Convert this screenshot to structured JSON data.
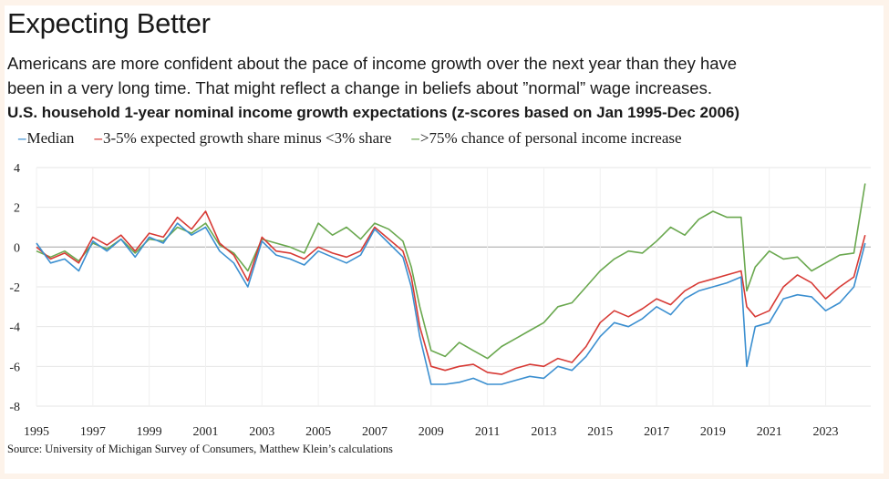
{
  "title": "Expecting Better",
  "subtitle_line1": "Americans are more confident about the pace of income growth over the next year than they have",
  "subtitle_line2": "been in a very long time. That might reflect a change in beliefs about ”normal” wage increases.",
  "source": "Source: University of Michigan Survey of Consumers, Matthew Klein’s calculations",
  "chart_data": {
    "type": "line",
    "title": "U.S. household 1-year nominal income growth expectations (z-scores based on Jan 1995-Dec 2006)",
    "xlabel": "",
    "ylabel": "",
    "xlim": [
      1995,
      2024.6
    ],
    "ylim": [
      -8,
      4
    ],
    "yticks": [
      4,
      2,
      0,
      -2,
      -4,
      -6,
      -8
    ],
    "xticks": [
      1995,
      1997,
      1999,
      2001,
      2003,
      2005,
      2007,
      2009,
      2011,
      2013,
      2015,
      2017,
      2019,
      2021,
      2023
    ],
    "grid": true,
    "legend_position": "top",
    "series": [
      {
        "name": "Median",
        "color": "#3b8fd0",
        "x": [
          1995.0,
          1995.5,
          1996.0,
          1996.5,
          1997.0,
          1997.5,
          1998.0,
          1998.5,
          1999.0,
          1999.5,
          2000.0,
          2000.5,
          2001.0,
          2001.5,
          2002.0,
          2002.5,
          2003.0,
          2003.5,
          2004.0,
          2004.5,
          2005.0,
          2005.5,
          2006.0,
          2006.5,
          2007.0,
          2007.5,
          2008.0,
          2008.3,
          2008.6,
          2009.0,
          2009.5,
          2010.0,
          2010.5,
          2011.0,
          2011.5,
          2012.0,
          2012.5,
          2013.0,
          2013.5,
          2014.0,
          2014.5,
          2015.0,
          2015.5,
          2016.0,
          2016.5,
          2017.0,
          2017.5,
          2018.0,
          2018.5,
          2019.0,
          2019.5,
          2020.0,
          2020.2,
          2020.5,
          2021.0,
          2021.5,
          2022.0,
          2022.5,
          2023.0,
          2023.5,
          2024.0,
          2024.4
        ],
        "y": [
          0.2,
          -0.8,
          -0.6,
          -1.2,
          0.3,
          -0.2,
          0.4,
          -0.5,
          0.5,
          0.2,
          1.2,
          0.6,
          1.0,
          -0.2,
          -0.8,
          -2.0,
          0.3,
          -0.4,
          -0.6,
          -0.9,
          -0.2,
          -0.5,
          -0.8,
          -0.4,
          0.9,
          0.2,
          -0.5,
          -2.0,
          -4.5,
          -6.9,
          -6.9,
          -6.8,
          -6.6,
          -6.9,
          -6.9,
          -6.7,
          -6.5,
          -6.6,
          -6.0,
          -6.2,
          -5.5,
          -4.5,
          -3.8,
          -4.0,
          -3.6,
          -3.0,
          -3.4,
          -2.6,
          -2.2,
          -2.0,
          -1.8,
          -1.5,
          -6.0,
          -4.0,
          -3.8,
          -2.6,
          -2.4,
          -2.5,
          -3.2,
          -2.8,
          -2.0,
          0.2
        ]
      },
      {
        "name": "3-5% expected growth share minus <3% share",
        "color": "#d73a35",
        "x": [
          1995.0,
          1995.5,
          1996.0,
          1996.5,
          1997.0,
          1997.5,
          1998.0,
          1998.5,
          1999.0,
          1999.5,
          2000.0,
          2000.5,
          2001.0,
          2001.5,
          2002.0,
          2002.5,
          2003.0,
          2003.5,
          2004.0,
          2004.5,
          2005.0,
          2005.5,
          2006.0,
          2006.5,
          2007.0,
          2007.5,
          2008.0,
          2008.3,
          2008.6,
          2009.0,
          2009.5,
          2010.0,
          2010.5,
          2011.0,
          2011.5,
          2012.0,
          2012.5,
          2013.0,
          2013.5,
          2014.0,
          2014.5,
          2015.0,
          2015.5,
          2016.0,
          2016.5,
          2017.0,
          2017.5,
          2018.0,
          2018.5,
          2019.0,
          2019.5,
          2020.0,
          2020.2,
          2020.5,
          2021.0,
          2021.5,
          2022.0,
          2022.5,
          2023.0,
          2023.5,
          2024.0,
          2024.4
        ],
        "y": [
          0.0,
          -0.6,
          -0.3,
          -0.8,
          0.5,
          0.1,
          0.6,
          -0.2,
          0.7,
          0.5,
          1.5,
          0.9,
          1.8,
          0.2,
          -0.4,
          -1.7,
          0.5,
          -0.2,
          -0.3,
          -0.6,
          0.0,
          -0.3,
          -0.5,
          -0.2,
          1.0,
          0.4,
          -0.2,
          -1.5,
          -4.0,
          -6.0,
          -6.2,
          -6.0,
          -5.9,
          -6.3,
          -6.4,
          -6.1,
          -5.9,
          -6.0,
          -5.6,
          -5.8,
          -5.0,
          -3.8,
          -3.2,
          -3.5,
          -3.1,
          -2.6,
          -2.9,
          -2.2,
          -1.8,
          -1.6,
          -1.4,
          -1.2,
          -3.0,
          -3.5,
          -3.2,
          -2.0,
          -1.4,
          -1.8,
          -2.6,
          -2.0,
          -1.5,
          0.6
        ]
      },
      {
        "name": ">75% chance of personal income increase",
        "color": "#6aa84f",
        "x": [
          1995.0,
          1995.5,
          1996.0,
          1996.5,
          1997.0,
          1997.5,
          1998.0,
          1998.5,
          1999.0,
          1999.5,
          2000.0,
          2000.5,
          2001.0,
          2001.5,
          2002.0,
          2002.5,
          2003.0,
          2003.5,
          2004.0,
          2004.5,
          2005.0,
          2005.5,
          2006.0,
          2006.5,
          2007.0,
          2007.5,
          2008.0,
          2008.3,
          2008.6,
          2009.0,
          2009.5,
          2010.0,
          2010.5,
          2011.0,
          2011.5,
          2012.0,
          2012.5,
          2013.0,
          2013.5,
          2014.0,
          2014.5,
          2015.0,
          2015.5,
          2016.0,
          2016.5,
          2017.0,
          2017.5,
          2018.0,
          2018.5,
          2019.0,
          2019.5,
          2020.0,
          2020.2,
          2020.5,
          2021.0,
          2021.5,
          2022.0,
          2022.5,
          2023.0,
          2023.5,
          2024.0,
          2024.4
        ],
        "y": [
          -0.2,
          -0.5,
          -0.2,
          -0.7,
          0.2,
          -0.1,
          0.4,
          -0.3,
          0.4,
          0.3,
          1.0,
          0.7,
          1.2,
          0.1,
          -0.3,
          -1.2,
          0.4,
          0.2,
          0.0,
          -0.3,
          1.2,
          0.6,
          1.0,
          0.4,
          1.2,
          0.9,
          0.3,
          -1.0,
          -3.0,
          -5.2,
          -5.5,
          -4.8,
          -5.2,
          -5.6,
          -5.0,
          -4.6,
          -4.2,
          -3.8,
          -3.0,
          -2.8,
          -2.0,
          -1.2,
          -0.6,
          -0.2,
          -0.3,
          0.3,
          1.0,
          0.6,
          1.4,
          1.8,
          1.5,
          1.5,
          -2.2,
          -1.0,
          -0.2,
          -0.6,
          -0.5,
          -1.2,
          -0.8,
          -0.4,
          -0.3,
          3.2
        ]
      }
    ]
  }
}
